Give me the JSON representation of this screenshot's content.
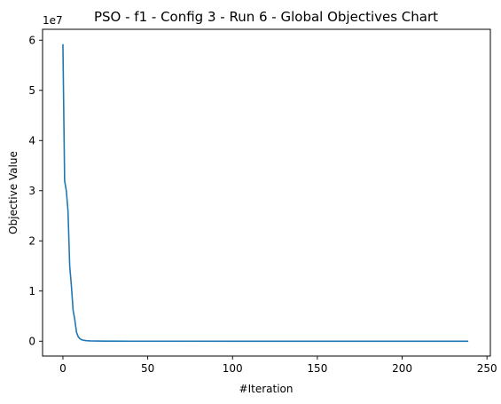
{
  "chart_data": {
    "type": "line",
    "title": "PSO - f1 - Config 3 - Run 6 - Global Objectives Chart",
    "xlabel": "#Iteration",
    "ylabel": "Objective Value",
    "y_multiplier": "1e7",
    "xlim": [
      -12,
      252
    ],
    "ylim": [
      -2960000,
      62170000
    ],
    "x_ticks": [
      0,
      50,
      100,
      150,
      200,
      250
    ],
    "y_ticks": [
      0,
      10000000,
      20000000,
      30000000,
      40000000,
      50000000,
      60000000
    ],
    "x_tick_labels": [
      "0",
      "50",
      "100",
      "150",
      "200",
      "250"
    ],
    "y_tick_labels": [
      "0",
      "1",
      "2",
      "3",
      "4",
      "5",
      "6"
    ],
    "grid": false,
    "line_color": "#1f77b4",
    "series": [
      {
        "x": [
          0,
          1,
          2,
          3,
          4,
          5,
          6,
          7,
          8,
          9,
          10,
          11,
          12,
          14,
          16,
          20,
          25,
          30,
          40,
          60,
          100,
          150,
          200,
          239
        ],
        "values": [
          59200000,
          32000000,
          30000000,
          26000000,
          15000000,
          11000000,
          6200000,
          4300000,
          1800000,
          900000,
          500000,
          300000,
          200000,
          100000,
          60000,
          30000,
          15000,
          8000,
          4000,
          2000,
          1000,
          500,
          300,
          200
        ]
      }
    ]
  }
}
